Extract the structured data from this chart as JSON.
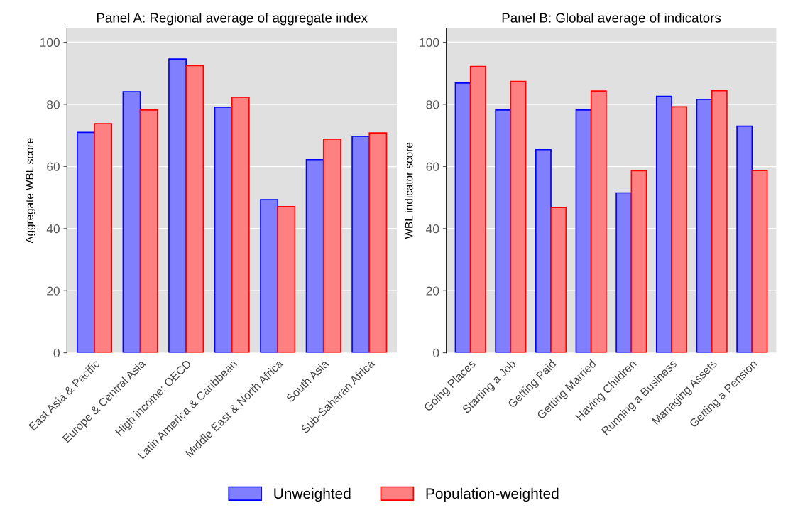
{
  "chart_data": [
    {
      "type": "bar",
      "title": "Panel A: Regional average of aggregate index",
      "ylabel": "Aggregate WBL score",
      "categories": [
        "East Asia & Pacific",
        "Europe & Central Asia",
        "High income: OECD",
        "Latin America & Caribbean",
        "Middle East & North Africa",
        "South Asia",
        "Sub-Saharan Africa"
      ],
      "series": [
        {
          "name": "Unweighted",
          "color": "#8080ff",
          "values": [
            71.0,
            84.1,
            94.6,
            79.1,
            49.3,
            62.2,
            69.7
          ]
        },
        {
          "name": "Population-weighted",
          "color": "#ff8080",
          "values": [
            73.8,
            78.2,
            92.5,
            82.3,
            47.1,
            68.8,
            70.8
          ]
        }
      ],
      "ylim": [
        0,
        104.5
      ],
      "yticks": [
        0,
        20,
        40,
        60,
        80,
        100
      ],
      "grid": "y",
      "legend": "bottom"
    },
    {
      "type": "bar",
      "title": "Panel B: Global average of indicators",
      "ylabel": "WBL indicator score",
      "categories": [
        "Going Places",
        "Starting a Job",
        "Getting Paid",
        "Getting Married",
        "Having Children",
        "Running a Business",
        "Managing Assets",
        "Getting a Pension"
      ],
      "series": [
        {
          "name": "Unweighted",
          "color": "#8080ff",
          "values": [
            86.9,
            78.2,
            65.4,
            78.2,
            51.5,
            82.6,
            81.6,
            73.0
          ]
        },
        {
          "name": "Population-weighted",
          "color": "#ff8080",
          "values": [
            92.2,
            87.4,
            46.8,
            84.3,
            58.6,
            79.2,
            84.4,
            58.7
          ]
        }
      ],
      "ylim": [
        0,
        104.5
      ],
      "yticks": [
        0,
        20,
        40,
        60,
        80,
        100
      ],
      "grid": "y",
      "legend": false
    }
  ]
}
